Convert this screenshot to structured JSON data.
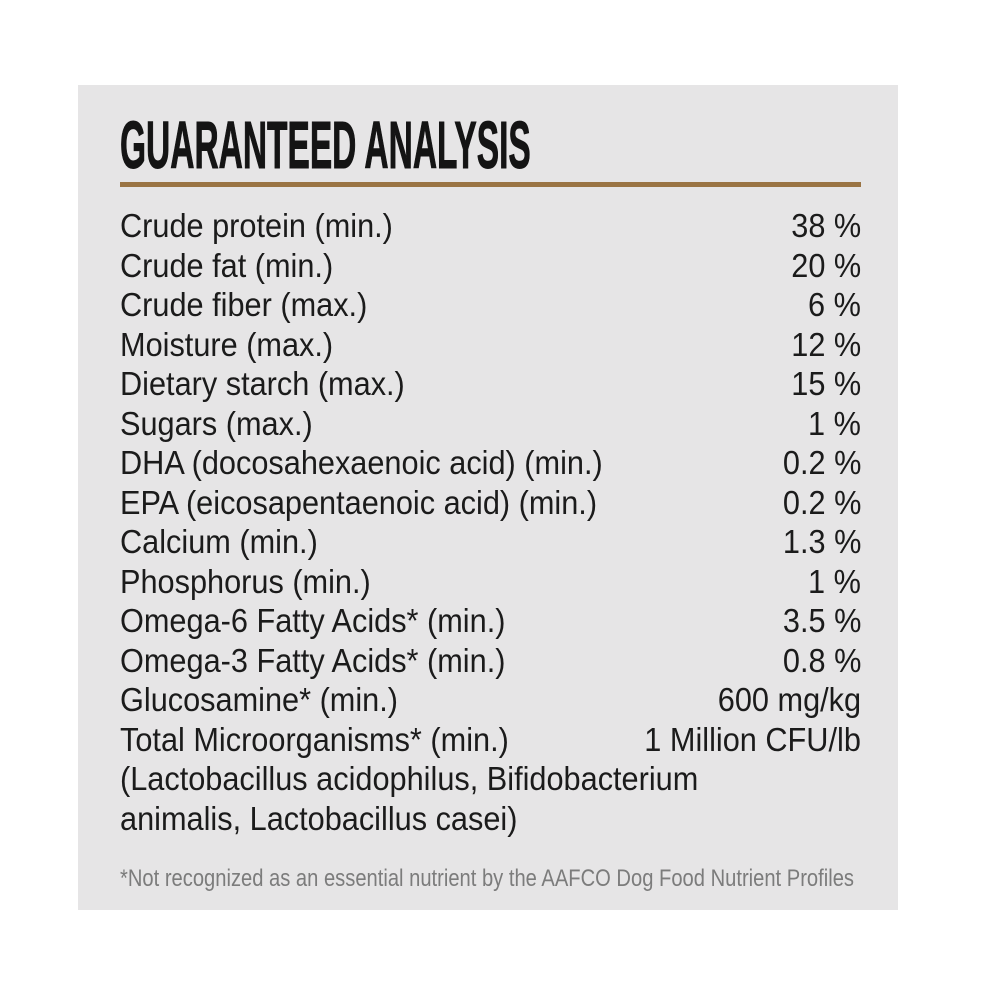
{
  "panel": {
    "title": "GUARANTEED ANALYSIS",
    "background_color": "#e6e5e6",
    "accent_rule_color": "#9a7444",
    "text_color": "#1b1b1b",
    "footnote_color": "#7c7c7c",
    "rows": [
      {
        "label": "Crude protein (min.)",
        "value": "38 %"
      },
      {
        "label": "Crude fat (min.)",
        "value": "20 %"
      },
      {
        "label": "Crude fiber (max.)",
        "value": "6 %"
      },
      {
        "label": "Moisture (max.)",
        "value": "12 %"
      },
      {
        "label": "Dietary starch (max.)",
        "value": "15 %"
      },
      {
        "label": "Sugars (max.)",
        "value": "1 %"
      },
      {
        "label": "DHA (docosahexaenoic acid) (min.)",
        "value": "0.2 %"
      },
      {
        "label": "EPA (eicosapentaenoic acid) (min.)",
        "value": "0.2 %"
      },
      {
        "label": "Calcium (min.)",
        "value": "1.3 %"
      },
      {
        "label": "Phosphorus (min.)",
        "value": "1 %"
      },
      {
        "label": "Omega-6 Fatty Acids* (min.)",
        "value": "3.5 %"
      },
      {
        "label": "Omega-3 Fatty Acids* (min.)",
        "value": "0.8 %"
      },
      {
        "label": "Glucosamine* (min.)",
        "value": "600 mg/kg"
      },
      {
        "label": "Total Microorganisms* (min.)",
        "value": "1 Million CFU/lb"
      }
    ],
    "continuation_lines": [
      "(Lactobacillus acidophilus, Bifidobacterium",
      "animalis, Lactobacillus casei)"
    ],
    "footnote": "*Not recognized as an essential nutrient by the AAFCO Dog Food Nutrient Profiles"
  }
}
